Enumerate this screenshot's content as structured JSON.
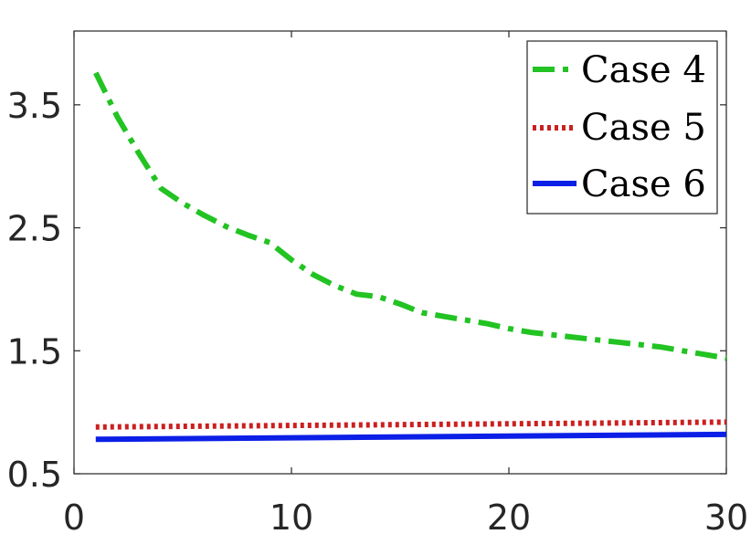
{
  "chart_data": {
    "type": "line",
    "title": "",
    "xlabel": "",
    "ylabel": "",
    "xlim": [
      0,
      30
    ],
    "ylim": [
      0.5,
      4.1
    ],
    "x_ticks": [
      0,
      10,
      20,
      30
    ],
    "x_tick_labels": [
      "0",
      "10",
      "20",
      "30"
    ],
    "y_ticks": [
      0.5,
      1.5,
      2.5,
      3.5
    ],
    "y_tick_labels": [
      "0.5",
      "1.5",
      "2.5",
      "3.5"
    ],
    "grid": false,
    "legend_position": "top-right",
    "series": [
      {
        "name": "Case 4",
        "color": "#22c322",
        "style": "dashdot",
        "x": [
          1,
          2,
          3,
          4,
          5,
          6,
          7,
          8,
          9,
          10,
          11,
          12,
          13,
          14,
          15,
          16,
          17,
          18,
          19,
          20,
          21,
          22,
          23,
          24,
          25,
          26,
          27,
          28,
          29,
          30
        ],
        "y": [
          3.76,
          3.4,
          3.1,
          2.82,
          2.7,
          2.6,
          2.51,
          2.44,
          2.38,
          2.24,
          2.12,
          2.03,
          1.96,
          1.94,
          1.88,
          1.81,
          1.78,
          1.75,
          1.72,
          1.68,
          1.65,
          1.63,
          1.61,
          1.59,
          1.57,
          1.55,
          1.53,
          1.5,
          1.47,
          1.44
        ]
      },
      {
        "name": "Case 5",
        "color": "#cc1f1f",
        "style": "dotted",
        "x": [
          1,
          30
        ],
        "y": [
          0.88,
          0.92
        ]
      },
      {
        "name": "Case 6",
        "color": "#0b1fe6",
        "style": "solid",
        "x": [
          1,
          30
        ],
        "y": [
          0.78,
          0.82
        ]
      }
    ]
  }
}
